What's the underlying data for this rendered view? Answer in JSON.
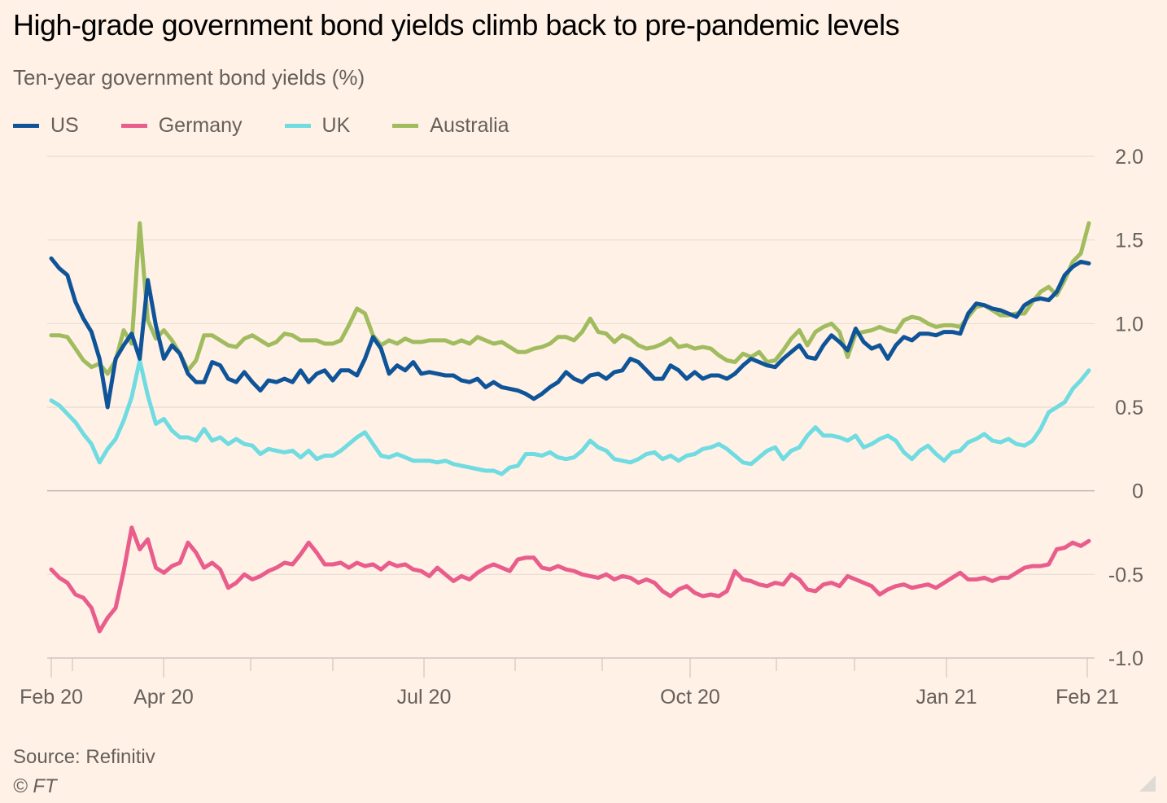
{
  "chart_data": {
    "type": "line",
    "title": "High-grade government bond yields climb back to pre-pandemic levels",
    "subtitle": "Ten-year government bond yields (%)",
    "xlabel": "",
    "ylabel": "",
    "x_start": "2020-02-03",
    "x_end": "2021-02-01",
    "ylim": [
      -1.0,
      2.0
    ],
    "yticks": [
      2.0,
      1.5,
      1.0,
      0.5,
      0,
      -0.5,
      -1.0
    ],
    "ytick_labels": [
      "2.0",
      "1.5",
      "1.0",
      "0.5",
      "0",
      "-0.5",
      "-1.0"
    ],
    "xtick_labels": [
      "Feb 20",
      "Apr 20",
      "Jul 20",
      "Oct 20",
      "Jan 21",
      "Feb 21"
    ],
    "grid": true,
    "legend_position": "top-left",
    "source": "Source: Refinitiv",
    "copyright": "© FT",
    "series": [
      {
        "name": "US",
        "color": "#0f5499",
        "values": [
          1.39,
          1.33,
          1.29,
          1.13,
          1.03,
          0.95,
          0.79,
          0.5,
          0.79,
          0.87,
          0.94,
          0.79,
          1.26,
          0.99,
          0.79,
          0.87,
          0.82,
          0.7,
          0.65,
          0.65,
          0.77,
          0.75,
          0.67,
          0.65,
          0.71,
          0.65,
          0.6,
          0.66,
          0.65,
          0.67,
          0.65,
          0.72,
          0.65,
          0.7,
          0.72,
          0.66,
          0.72,
          0.72,
          0.69,
          0.79,
          0.92,
          0.85,
          0.7,
          0.75,
          0.72,
          0.77,
          0.7,
          0.71,
          0.7,
          0.69,
          0.69,
          0.66,
          0.65,
          0.67,
          0.62,
          0.65,
          0.62,
          0.61,
          0.6,
          0.58,
          0.55,
          0.58,
          0.62,
          0.65,
          0.71,
          0.67,
          0.65,
          0.69,
          0.7,
          0.67,
          0.71,
          0.72,
          0.79,
          0.77,
          0.72,
          0.67,
          0.67,
          0.75,
          0.72,
          0.67,
          0.71,
          0.67,
          0.69,
          0.69,
          0.67,
          0.7,
          0.75,
          0.79,
          0.77,
          0.75,
          0.74,
          0.79,
          0.83,
          0.87,
          0.8,
          0.79,
          0.87,
          0.93,
          0.89,
          0.84,
          0.97,
          0.89,
          0.85,
          0.87,
          0.79,
          0.87,
          0.92,
          0.9,
          0.94,
          0.94,
          0.93,
          0.95,
          0.95,
          0.94,
          1.06,
          1.12,
          1.11,
          1.09,
          1.08,
          1.06,
          1.04,
          1.11,
          1.14,
          1.15,
          1.14,
          1.19,
          1.29,
          1.34,
          1.37,
          1.36
        ]
      },
      {
        "name": "Germany",
        "color": "#e95d8c",
        "values": [
          -0.47,
          -0.52,
          -0.55,
          -0.62,
          -0.64,
          -0.7,
          -0.84,
          -0.76,
          -0.7,
          -0.48,
          -0.22,
          -0.35,
          -0.29,
          -0.46,
          -0.49,
          -0.45,
          -0.43,
          -0.31,
          -0.37,
          -0.46,
          -0.43,
          -0.47,
          -0.58,
          -0.55,
          -0.5,
          -0.53,
          -0.51,
          -0.48,
          -0.46,
          -0.43,
          -0.44,
          -0.38,
          -0.31,
          -0.37,
          -0.44,
          -0.44,
          -0.43,
          -0.46,
          -0.43,
          -0.45,
          -0.44,
          -0.47,
          -0.43,
          -0.45,
          -0.44,
          -0.47,
          -0.48,
          -0.51,
          -0.46,
          -0.5,
          -0.54,
          -0.51,
          -0.53,
          -0.49,
          -0.46,
          -0.44,
          -0.46,
          -0.48,
          -0.41,
          -0.4,
          -0.4,
          -0.46,
          -0.47,
          -0.45,
          -0.47,
          -0.48,
          -0.5,
          -0.51,
          -0.52,
          -0.5,
          -0.53,
          -0.51,
          -0.52,
          -0.55,
          -0.53,
          -0.55,
          -0.6,
          -0.63,
          -0.59,
          -0.57,
          -0.61,
          -0.63,
          -0.62,
          -0.63,
          -0.6,
          -0.48,
          -0.53,
          -0.54,
          -0.56,
          -0.57,
          -0.55,
          -0.56,
          -0.5,
          -0.53,
          -0.59,
          -0.6,
          -0.56,
          -0.55,
          -0.57,
          -0.51,
          -0.53,
          -0.55,
          -0.57,
          -0.62,
          -0.59,
          -0.57,
          -0.56,
          -0.58,
          -0.57,
          -0.56,
          -0.58,
          -0.55,
          -0.52,
          -0.49,
          -0.53,
          -0.53,
          -0.52,
          -0.54,
          -0.52,
          -0.52,
          -0.49,
          -0.46,
          -0.45,
          -0.45,
          -0.44,
          -0.35,
          -0.34,
          -0.31,
          -0.33,
          -0.3
        ]
      },
      {
        "name": "UK",
        "color": "#70dce1",
        "values": [
          0.54,
          0.51,
          0.46,
          0.41,
          0.34,
          0.28,
          0.17,
          0.25,
          0.31,
          0.42,
          0.56,
          0.78,
          0.57,
          0.4,
          0.43,
          0.36,
          0.32,
          0.32,
          0.3,
          0.37,
          0.3,
          0.32,
          0.28,
          0.31,
          0.28,
          0.27,
          0.22,
          0.25,
          0.24,
          0.23,
          0.24,
          0.2,
          0.24,
          0.19,
          0.21,
          0.21,
          0.24,
          0.28,
          0.32,
          0.35,
          0.28,
          0.21,
          0.2,
          0.22,
          0.2,
          0.18,
          0.18,
          0.18,
          0.17,
          0.18,
          0.16,
          0.15,
          0.14,
          0.13,
          0.12,
          0.12,
          0.1,
          0.14,
          0.15,
          0.22,
          0.22,
          0.21,
          0.23,
          0.2,
          0.19,
          0.2,
          0.24,
          0.3,
          0.26,
          0.24,
          0.19,
          0.18,
          0.17,
          0.19,
          0.22,
          0.23,
          0.19,
          0.21,
          0.18,
          0.21,
          0.22,
          0.25,
          0.26,
          0.28,
          0.25,
          0.21,
          0.17,
          0.16,
          0.2,
          0.24,
          0.26,
          0.19,
          0.24,
          0.26,
          0.33,
          0.38,
          0.33,
          0.33,
          0.32,
          0.3,
          0.33,
          0.26,
          0.28,
          0.31,
          0.33,
          0.3,
          0.23,
          0.19,
          0.24,
          0.27,
          0.22,
          0.18,
          0.23,
          0.24,
          0.29,
          0.31,
          0.34,
          0.3,
          0.29,
          0.31,
          0.28,
          0.27,
          0.3,
          0.37,
          0.47,
          0.5,
          0.53,
          0.61,
          0.66,
          0.72
        ]
      },
      {
        "name": "Australia",
        "color": "#a0bc5f",
        "values": [
          0.93,
          0.93,
          0.92,
          0.85,
          0.78,
          0.74,
          0.76,
          0.7,
          0.78,
          0.96,
          0.88,
          1.6,
          1.02,
          0.91,
          0.96,
          0.9,
          0.82,
          0.72,
          0.78,
          0.93,
          0.93,
          0.9,
          0.87,
          0.86,
          0.91,
          0.93,
          0.9,
          0.87,
          0.89,
          0.94,
          0.93,
          0.9,
          0.9,
          0.9,
          0.88,
          0.88,
          0.9,
          0.99,
          1.09,
          1.06,
          0.93,
          0.87,
          0.9,
          0.88,
          0.91,
          0.89,
          0.89,
          0.9,
          0.9,
          0.9,
          0.88,
          0.9,
          0.88,
          0.92,
          0.9,
          0.88,
          0.89,
          0.86,
          0.83,
          0.83,
          0.85,
          0.86,
          0.88,
          0.92,
          0.92,
          0.9,
          0.95,
          1.03,
          0.95,
          0.94,
          0.89,
          0.93,
          0.91,
          0.87,
          0.85,
          0.86,
          0.88,
          0.91,
          0.86,
          0.87,
          0.85,
          0.86,
          0.85,
          0.81,
          0.78,
          0.77,
          0.82,
          0.8,
          0.83,
          0.77,
          0.78,
          0.84,
          0.91,
          0.96,
          0.87,
          0.95,
          0.98,
          1.0,
          0.95,
          0.8,
          0.94,
          0.95,
          0.96,
          0.98,
          0.96,
          0.95,
          1.02,
          1.04,
          1.03,
          1.0,
          0.98,
          0.99,
          0.99,
          0.98,
          1.04,
          1.1,
          1.11,
          1.08,
          1.05,
          1.05,
          1.06,
          1.06,
          1.13,
          1.19,
          1.22,
          1.17,
          1.26,
          1.37,
          1.42,
          1.6
        ]
      }
    ]
  }
}
